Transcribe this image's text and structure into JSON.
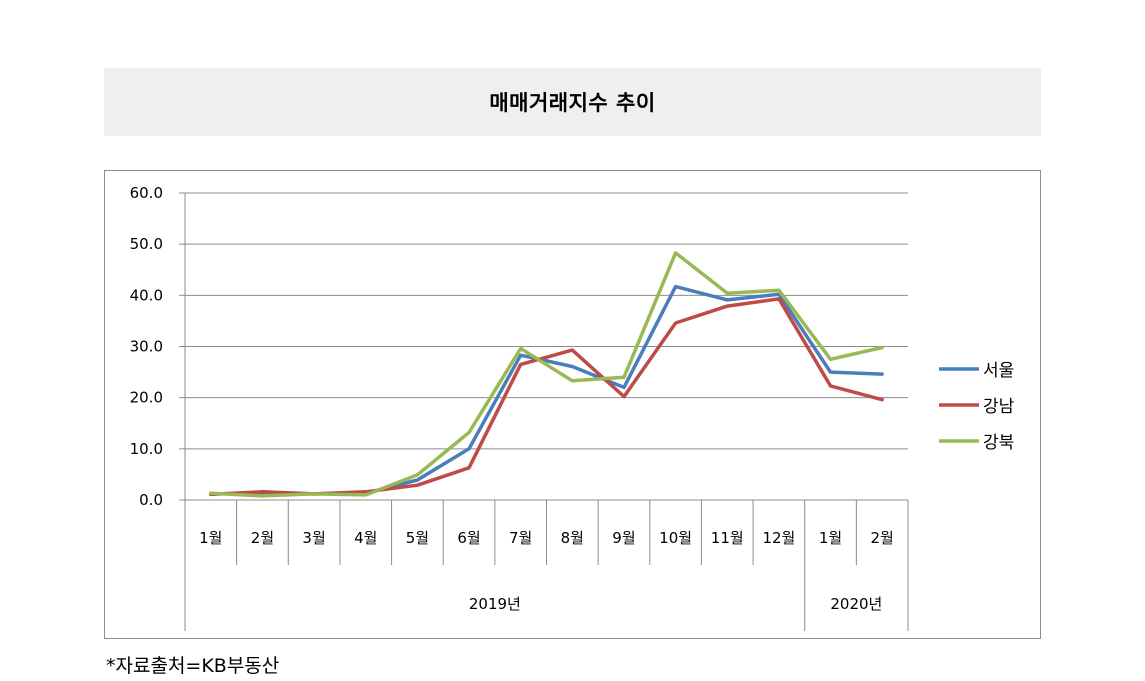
{
  "chart_data": {
    "type": "line",
    "title": "매매거래지수 추이",
    "categories": [
      "1월",
      "2월",
      "3월",
      "4월",
      "5월",
      "6월",
      "7월",
      "8월",
      "9월",
      "10월",
      "11월",
      "12월",
      "1월",
      "2월"
    ],
    "year_groups": [
      {
        "label": "2019년",
        "count": 12
      },
      {
        "label": "2020년",
        "count": 2
      }
    ],
    "yticks": [
      "0.0",
      "10.0",
      "20.0",
      "30.0",
      "40.0",
      "50.0",
      "60.0"
    ],
    "ylim": [
      0,
      60
    ],
    "grid": true,
    "legend_position": "right",
    "series": [
      {
        "name": "서울",
        "color": "#4a7ebb",
        "values": [
          1.2,
          1.3,
          1.2,
          1.3,
          3.9,
          10.0,
          28.3,
          26.1,
          22.0,
          41.7,
          39.1,
          40.2,
          25.0,
          24.6
        ]
      },
      {
        "name": "강남",
        "color": "#be4b48",
        "values": [
          1.1,
          1.6,
          1.2,
          1.6,
          2.9,
          6.3,
          26.5,
          29.3,
          20.2,
          34.6,
          37.9,
          39.3,
          22.3,
          19.6
        ]
      },
      {
        "name": "강북",
        "color": "#98b954",
        "values": [
          1.3,
          0.8,
          1.2,
          1.0,
          4.9,
          13.2,
          29.6,
          23.3,
          24.0,
          48.3,
          40.4,
          41.0,
          27.5,
          29.8
        ]
      }
    ]
  },
  "source_note": "*자료출처=KB부동산"
}
